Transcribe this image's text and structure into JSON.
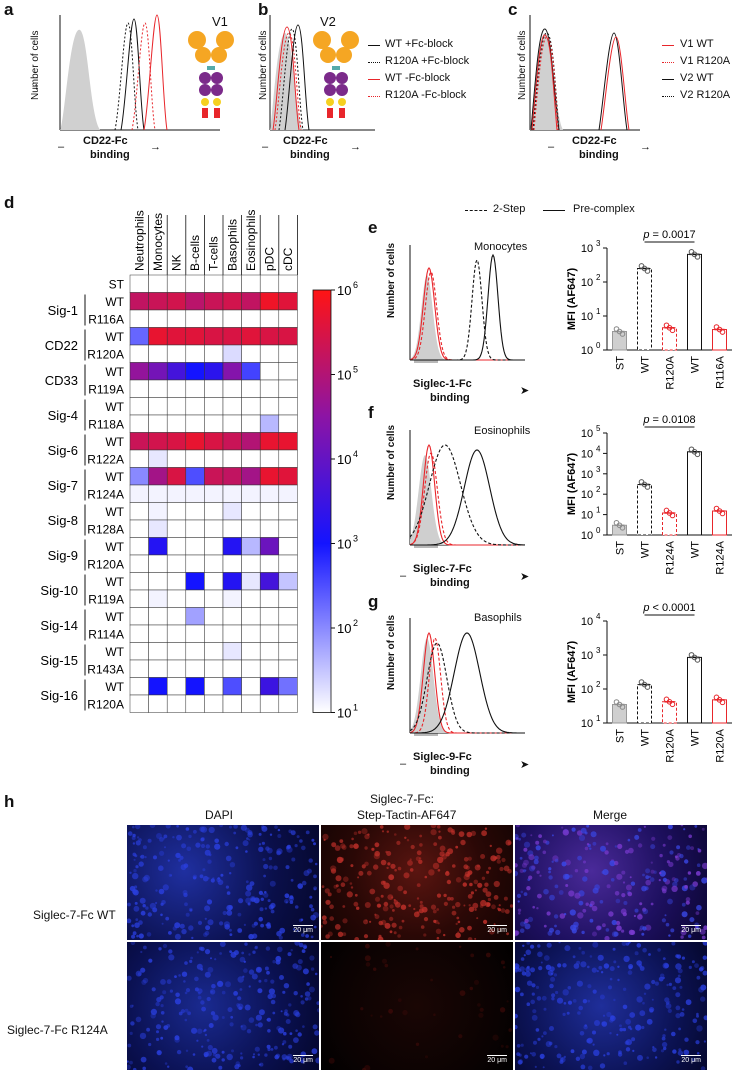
{
  "panels": {
    "a": "a",
    "b": "b",
    "c": "c",
    "d": "d",
    "e": "e",
    "f": "f",
    "g": "g",
    "h": "h"
  },
  "panel_a": {
    "ylabel": "Number of cells",
    "xlabel": "CD22-Fc\nbinding",
    "xlabel1": "CD22-Fc",
    "xlabel2": "binding",
    "label": "V1"
  },
  "panel_b": {
    "ylabel": "Number of cells",
    "xlabel1": "CD22-Fc",
    "xlabel2": "binding",
    "label": "V2",
    "legend": [
      "WT +Fc-block",
      "R120A +Fc-block",
      "WT -Fc-block",
      "R120A -Fc-block"
    ]
  },
  "panel_c": {
    "ylabel": "Number of cells",
    "xlabel1": "CD22-Fc",
    "xlabel2": "binding",
    "legend": [
      "V1 WT",
      "V1 R120A",
      "V2 WT",
      "V2 R120A"
    ]
  },
  "heatmap": {
    "columns": [
      "Neutrophils",
      "Monocytes",
      "NK",
      "B-cells",
      "T-cells",
      "Basophils",
      "Eosinophils",
      "pDC",
      "cDC"
    ],
    "groups": [
      {
        "name": "",
        "rows": [
          "ST"
        ]
      },
      {
        "name": "Sig-1",
        "rows": [
          "WT",
          "R116A"
        ]
      },
      {
        "name": "CD22",
        "rows": [
          "WT",
          "R120A"
        ]
      },
      {
        "name": "CD33",
        "rows": [
          "WT",
          "R119A"
        ]
      },
      {
        "name": "Sig-4",
        "rows": [
          "WT",
          "R118A"
        ]
      },
      {
        "name": "Sig-6",
        "rows": [
          "WT",
          "R122A"
        ]
      },
      {
        "name": "Sig-7",
        "rows": [
          "WT",
          "R124A"
        ]
      },
      {
        "name": "Sig-8",
        "rows": [
          "WT",
          "R128A"
        ]
      },
      {
        "name": "Sig-9",
        "rows": [
          "WT",
          "R120A"
        ]
      },
      {
        "name": "Sig-10",
        "rows": [
          "WT",
          "R119A"
        ]
      },
      {
        "name": "Sig-14",
        "rows": [
          "WT",
          "R114A"
        ]
      },
      {
        "name": "Sig-15",
        "rows": [
          "WT",
          "R143A"
        ]
      },
      {
        "name": "Sig-16",
        "rows": [
          "WT",
          "R120A"
        ]
      }
    ],
    "values_log10": [
      [
        1,
        1,
        1,
        1,
        1,
        1,
        1,
        1,
        1
      ],
      [
        5.2,
        5.3,
        5.4,
        5.1,
        5.3,
        5.4,
        5.2,
        5.8,
        5.6
      ],
      [
        1,
        1,
        1,
        1,
        1,
        1,
        1,
        1,
        1
      ],
      [
        2.3,
        5.7,
        5.6,
        5.6,
        5.5,
        5.5,
        5.6,
        5.5,
        5.5
      ],
      [
        1,
        1,
        1,
        1,
        1,
        1.3,
        1,
        1,
        1
      ],
      [
        4.6,
        4.2,
        3.6,
        3.0,
        3.3,
        4.4,
        2.6,
        1,
        1
      ],
      [
        1,
        1,
        1,
        1,
        1,
        1,
        1,
        1,
        1
      ],
      [
        1,
        1,
        1,
        1,
        1,
        1,
        1,
        1,
        1
      ],
      [
        1,
        1,
        1,
        1,
        1,
        1,
        1,
        1.6,
        1
      ],
      [
        5.3,
        5.4,
        5.5,
        5.7,
        5.5,
        5.3,
        5.0,
        5.7,
        5.7
      ],
      [
        1,
        1.2,
        1,
        1,
        1,
        1,
        1,
        1,
        1
      ],
      [
        2.0,
        4.8,
        5.5,
        2.5,
        5.3,
        5.2,
        4.8,
        5.7,
        5.6
      ],
      [
        1.1,
        1.1,
        1.1,
        1.1,
        1.1,
        1.1,
        1.1,
        1.1,
        1.1
      ],
      [
        1,
        1.1,
        1,
        1,
        1,
        1.2,
        1,
        1,
        1
      ],
      [
        1,
        1.2,
        1,
        1,
        1,
        1,
        1,
        1,
        1
      ],
      [
        1,
        3.2,
        1,
        1,
        1,
        3.2,
        1.6,
        4.1,
        1
      ],
      [
        1,
        1,
        1,
        1,
        1,
        1,
        1,
        1,
        1
      ],
      [
        1,
        1,
        1,
        3.0,
        1,
        3.2,
        1.2,
        3.6,
        1.5
      ],
      [
        1,
        1.1,
        1,
        1,
        1,
        1.1,
        1,
        1,
        1
      ],
      [
        1,
        1,
        1,
        1.8,
        1,
        1,
        1,
        1,
        1
      ],
      [
        1,
        1,
        1,
        1,
        1,
        1,
        1,
        1,
        1
      ],
      [
        1,
        1,
        1,
        1,
        1,
        1.2,
        1,
        1,
        1
      ],
      [
        1,
        1,
        1,
        1,
        1,
        1,
        1,
        1,
        1
      ],
      [
        1,
        3.0,
        1,
        3.0,
        1,
        2.5,
        1,
        3.5,
        2.2
      ],
      [
        1,
        1,
        1,
        1,
        1,
        1,
        1,
        1,
        1
      ]
    ],
    "colorbar_ticks": [
      "10",
      "10",
      "10",
      "10",
      "10",
      "10"
    ],
    "colorbar_exps": [
      "6",
      "5",
      "4",
      "3",
      "2",
      "1"
    ]
  },
  "legend_e": {
    "dashed": "2-Step",
    "solid": "Pre-complex"
  },
  "panel_e": {
    "cell": "Monocytes",
    "ylabel": "Number of cells",
    "xlabel1": "Siglec-1-Fc",
    "xlabel2": "binding",
    "bar_ylabel": "MFI (AF647)",
    "pval": "= 0.0017",
    "p": "p",
    "categories": [
      "ST",
      "WT",
      "R120A",
      "WT",
      "R116A"
    ],
    "yticks": [
      "10",
      "10",
      "10",
      "10"
    ],
    "yexps": [
      "3",
      "2",
      "1",
      "0"
    ]
  },
  "panel_f": {
    "cell": "Eosinophils",
    "ylabel": "Number of cells",
    "xlabel1": "Siglec-7-Fc",
    "xlabel2": "binding",
    "bar_ylabel": "MFI (AF647)",
    "pval": "= 0.0108",
    "p": "p",
    "categories": [
      "ST",
      "WT",
      "R124A",
      "WT",
      "R124A"
    ],
    "yticks": [
      "10",
      "10",
      "10",
      "10",
      "10",
      "10"
    ],
    "yexps": [
      "5",
      "4",
      "3",
      "2",
      "1",
      "0"
    ]
  },
  "panel_g": {
    "cell": "Basophils",
    "ylabel": "Number of cells",
    "xlabel1": "Siglec-9-Fc",
    "xlabel2": "binding",
    "bar_ylabel": "MFI (AF647)",
    "pval": "< 0.0001",
    "p": "p",
    "categories": [
      "ST",
      "WT",
      "R120A",
      "WT",
      "R120A"
    ],
    "yticks": [
      "10",
      "10",
      "10",
      "10"
    ],
    "yexps": [
      "4",
      "3",
      "2",
      "1"
    ]
  },
  "chart_data": [
    {
      "type": "bar",
      "title": "",
      "ylabel": "MFI (AF647)",
      "categories": [
        "ST",
        "WT",
        "R120A",
        "WT",
        "R116A"
      ],
      "values": [
        3.5,
        250,
        4.5,
        650,
        4
      ],
      "ylim": [
        1,
        1000
      ],
      "log": true,
      "annotation": "p = 0.0017"
    },
    {
      "type": "bar",
      "title": "",
      "ylabel": "MFI (AF647)",
      "categories": [
        "ST",
        "WT",
        "R124A",
        "WT",
        "R124A"
      ],
      "values": [
        3,
        300,
        12,
        12000,
        15
      ],
      "ylim": [
        1,
        100000
      ],
      "log": true,
      "annotation": "p = 0.0108"
    },
    {
      "type": "bar",
      "title": "",
      "ylabel": "MFI (AF647)",
      "categories": [
        "ST",
        "WT",
        "R120A",
        "WT",
        "R120A"
      ],
      "values": [
        35,
        135,
        42,
        850,
        48
      ],
      "ylim": [
        10,
        10000
      ],
      "log": true,
      "annotation": "p < 0.0001"
    }
  ],
  "panel_h": {
    "col_headers": [
      "DAPI",
      "Siglec-7-Fc:\nStep-Tactin-AF647",
      "Merge"
    ],
    "col1": "DAPI",
    "col2a": "Siglec-7-Fc:",
    "col2b": "Step-Tactin-AF647",
    "col3": "Merge",
    "rows": [
      "Siglec-7-Fc WT",
      "Siglec-7-Fc R124A"
    ],
    "scale": "20 μm"
  },
  "colors": {
    "red": "#e8262b",
    "black": "#111111",
    "gray": "#c8c8c8",
    "orange": "#f5a623",
    "purple": "#7b2a8a"
  }
}
